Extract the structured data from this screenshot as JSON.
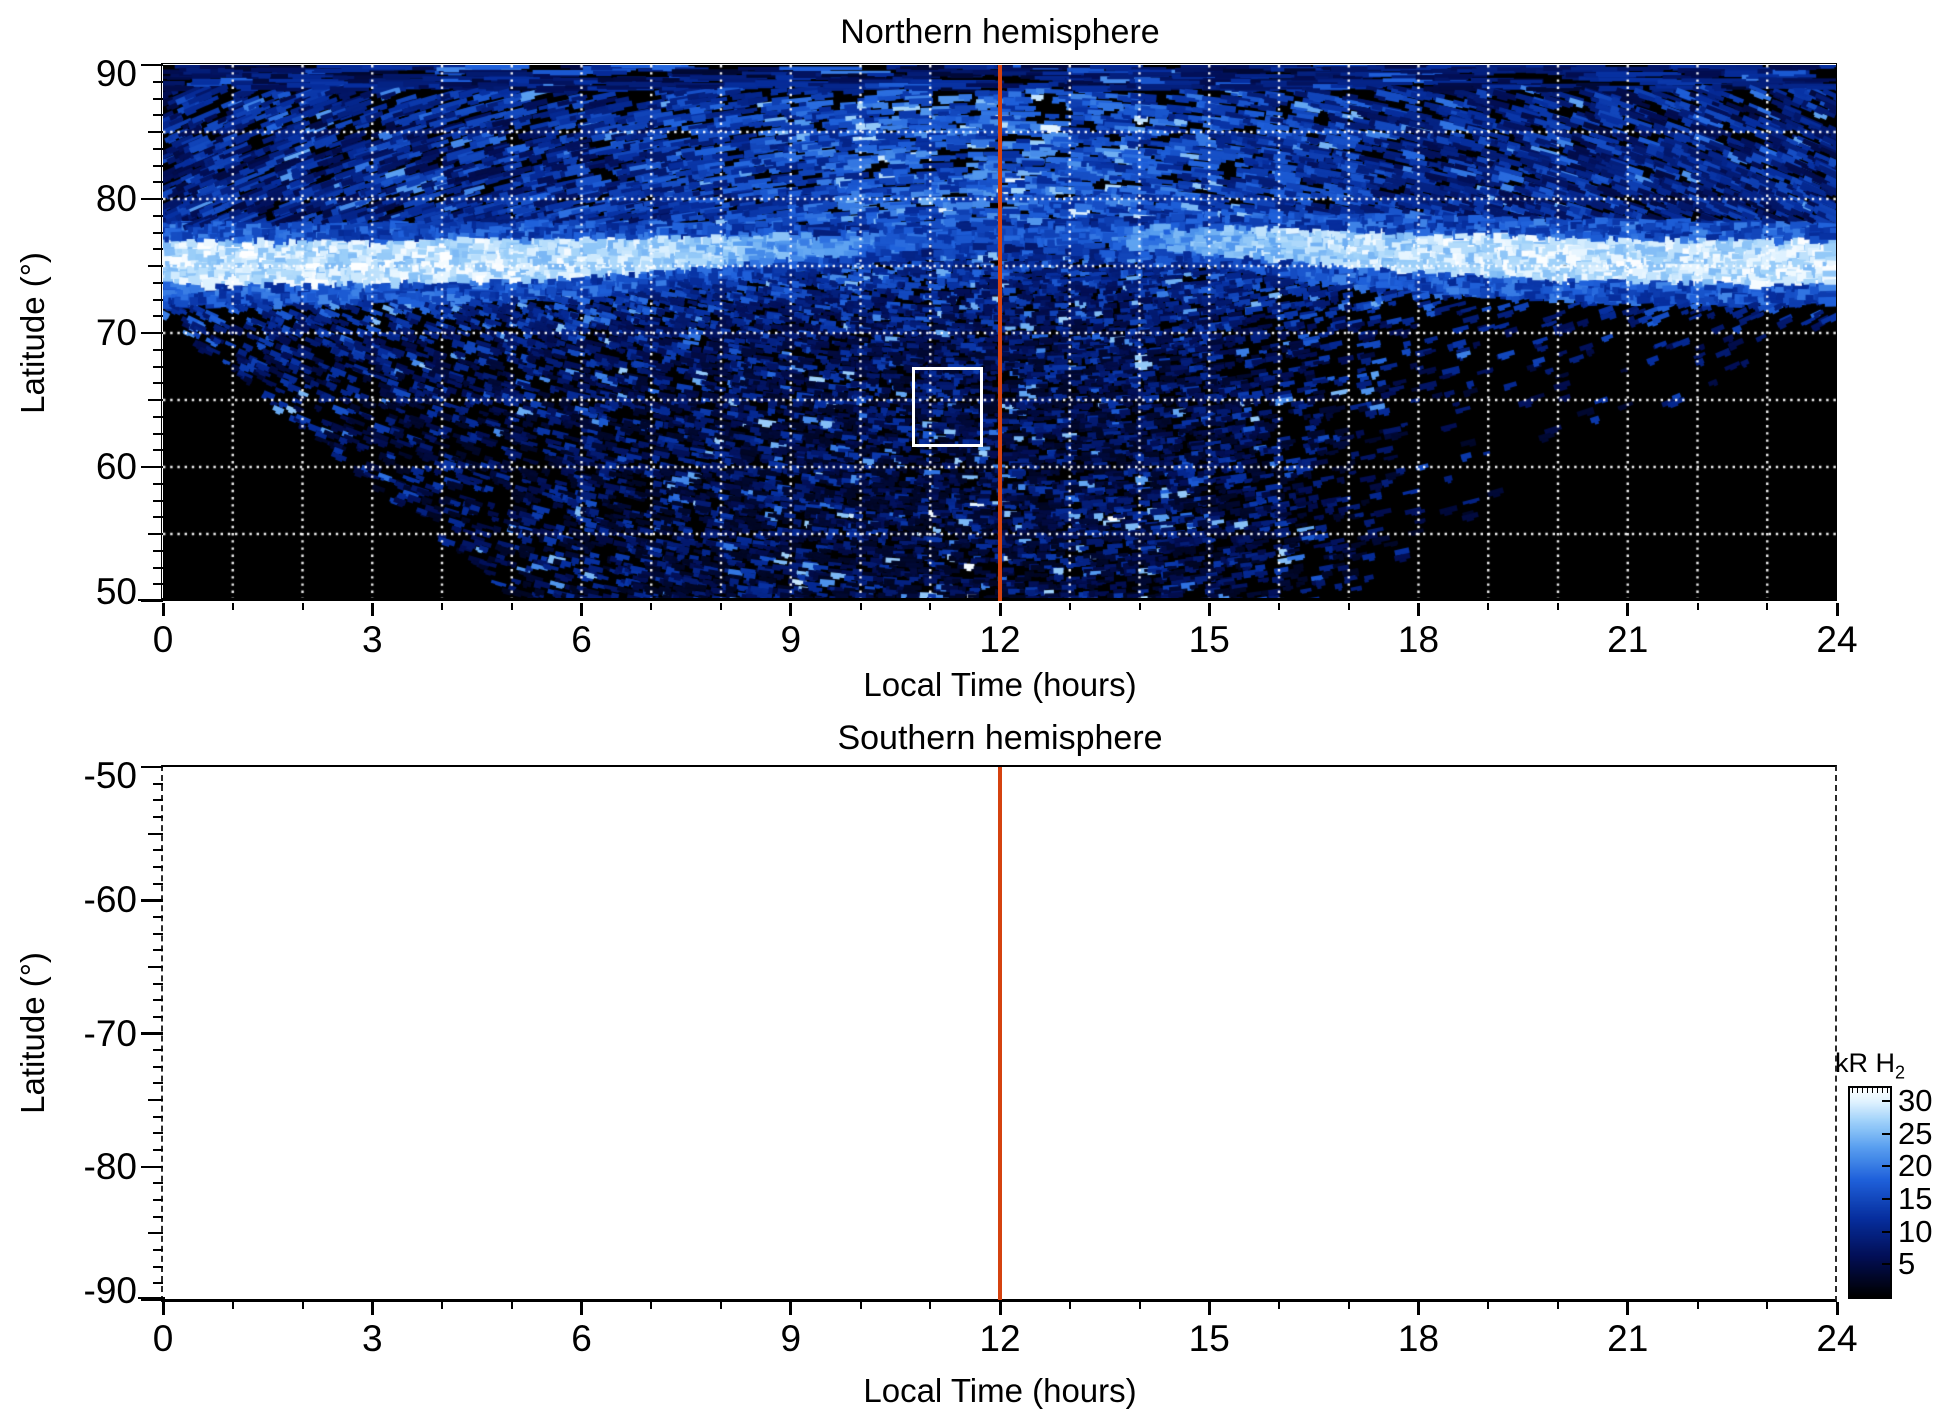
{
  "chart_data": {
    "type": "heatmap",
    "panels": [
      {
        "id": "northern",
        "title": "Northern hemisphere",
        "xlabel": "Local Time (hours)",
        "ylabel": "Latitude (°)",
        "xlim": [
          0,
          24
        ],
        "ylim": [
          50,
          90
        ],
        "xticks": [
          0,
          3,
          6,
          9,
          12,
          15,
          18,
          21,
          24
        ],
        "xtick_minor_every": 1,
        "yticks": [
          90,
          80,
          70,
          60,
          50
        ],
        "ytick_minor_every": 1.25,
        "grid": {
          "x_step": 1,
          "y_step": 5,
          "color": "#ffffff",
          "style": "dotted"
        },
        "noon_line": {
          "x": 12,
          "color": "#d5420f"
        },
        "selection_box": {
          "lt": [
            10.74,
            11.76
          ],
          "lat": [
            61.5,
            67.5
          ],
          "color": "#ffffff"
        },
        "units": "kR H2 brightness, 0-32 kR",
        "heatmap_model": {
          "seed": 1337,
          "band": {
            "center_base": 75.2,
            "center_bump": 2.0,
            "bump_lt": 13,
            "bump_sigma2": 28,
            "halfwidth_base": 1.9,
            "halfwidth_dip": 1.2,
            "dip_sigma2": 20,
            "noon_dim_sigma2": 10
          },
          "mask_left": {
            "lt_max": 5.15,
            "lat_at_0": 71,
            "slope": 4.1
          },
          "mask_right": {
            "lt_start": 16.8,
            "slope": 2.9
          },
          "speckle": {
            "base_density": 0.18,
            "peak_density": 0.4,
            "peak_lt": 11.5,
            "sigma2": 45,
            "right_falloff_lt": 14.5,
            "right_falloff_sigma2": 7,
            "near_band_scale": 3.5,
            "faint_zone_density": 0.13
          },
          "top_region": {
            "lat_min": 88.2,
            "density": 0.22
          }
        }
      },
      {
        "id": "southern",
        "title": "Southern hemisphere",
        "xlabel": "Local Time (hours)",
        "ylabel": "Latitude (°)",
        "xlim": [
          0,
          24
        ],
        "ylim": [
          -90,
          -50
        ],
        "xticks": [
          0,
          3,
          6,
          9,
          12,
          15,
          18,
          21,
          24
        ],
        "xtick_minor_every": 1,
        "yticks": [
          -50,
          -60,
          -70,
          -80,
          -90
        ],
        "ytick_minor_every": 1.25,
        "empty": true,
        "noon_line": {
          "x": 12,
          "color": "#d5420f"
        }
      }
    ],
    "colorbar": {
      "label": "kR H",
      "label_sub": "2",
      "range": [
        0,
        32
      ],
      "ticks": [
        30,
        25,
        20,
        15,
        10,
        5
      ],
      "colormap": [
        [
          0,
          "#000000"
        ],
        [
          6,
          "#020e54"
        ],
        [
          12,
          "#062e9e"
        ],
        [
          18,
          "#1f61db"
        ],
        [
          23,
          "#5aa0f0"
        ],
        [
          27,
          "#a0d2fa"
        ],
        [
          30,
          "#e1f3ff"
        ],
        [
          32,
          "#ffffff"
        ]
      ]
    }
  }
}
